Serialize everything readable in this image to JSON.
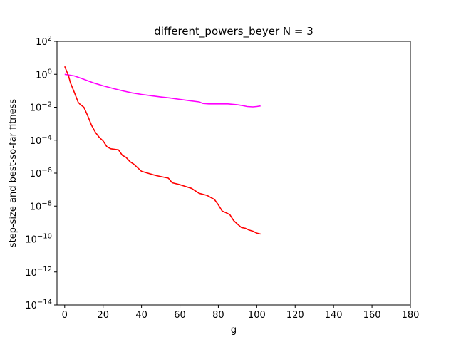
{
  "chart_data": {
    "type": "line",
    "title": "different_powers_beyer N = 3",
    "xlabel": "g",
    "ylabel": "step-size and best-so-far fitness",
    "xlim": [
      -4,
      180
    ],
    "xticks": [
      0,
      20,
      40,
      60,
      80,
      100,
      120,
      140,
      160,
      180
    ],
    "ylim": [
      1e-14,
      100
    ],
    "yscale": "log",
    "yticks_exp": [
      2,
      0,
      -2,
      -4,
      -6,
      -8,
      -10,
      -12,
      -14
    ],
    "grid": false,
    "series": [
      {
        "color": "#ff00ff",
        "x": [
          0,
          5,
          10,
          15,
          20,
          25,
          30,
          35,
          40,
          45,
          50,
          55,
          60,
          65,
          70,
          72,
          75,
          80,
          85,
          90,
          92,
          95,
          98,
          100,
          102
        ],
        "y": [
          1.0,
          0.8,
          0.5,
          0.3,
          0.2,
          0.14,
          0.1,
          0.075,
          0.06,
          0.05,
          0.042,
          0.036,
          0.03,
          0.025,
          0.021,
          0.017,
          0.016,
          0.016,
          0.016,
          0.014,
          0.013,
          0.011,
          0.0105,
          0.011,
          0.012
        ]
      },
      {
        "color": "#ff0000",
        "x": [
          0,
          2,
          3,
          5,
          7,
          8,
          10,
          12,
          14,
          16,
          18,
          20,
          22,
          24,
          28,
          30,
          32,
          34,
          36,
          40,
          42,
          46,
          48,
          54,
          56,
          60,
          66,
          70,
          74,
          78,
          80,
          82,
          84,
          86,
          88,
          90,
          92,
          94,
          96,
          98,
          100,
          102
        ],
        "y": [
          3.0,
          0.8,
          0.3,
          0.08,
          0.02,
          0.015,
          0.01,
          0.003,
          0.0008,
          0.0003,
          0.00015,
          9e-05,
          4e-05,
          3e-05,
          2.6e-05,
          1.2e-05,
          9e-06,
          5e-06,
          3.5e-06,
          1.3e-06,
          1.1e-06,
          8e-07,
          7e-07,
          5e-07,
          2.6e-07,
          2e-07,
          1.2e-07,
          6e-08,
          4.5e-08,
          2.5e-08,
          1.2e-08,
          5e-09,
          4e-09,
          3e-09,
          1.3e-09,
          8e-10,
          5e-10,
          4.5e-10,
          3.5e-10,
          3e-10,
          2.3e-10,
          2e-10
        ]
      }
    ]
  }
}
